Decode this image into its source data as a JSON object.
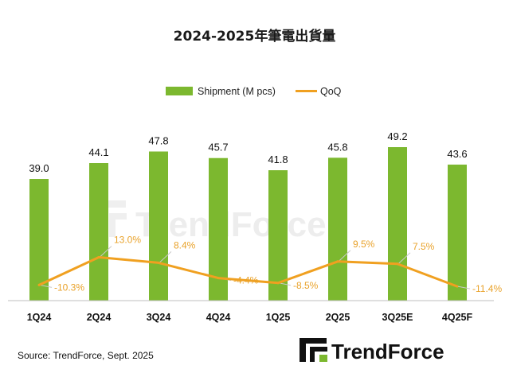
{
  "chart_data": {
    "type": "bar",
    "title": "2024-2025年筆電出貨量",
    "categories": [
      "1Q24",
      "2Q24",
      "3Q24",
      "4Q24",
      "1Q25",
      "2Q25",
      "3Q25E",
      "4Q25F"
    ],
    "series": [
      {
        "name": "Shipment (M pcs)",
        "type": "bar",
        "color": "#7cb82f",
        "values": [
          39.0,
          44.1,
          47.8,
          45.7,
          41.8,
          45.8,
          49.2,
          43.6
        ],
        "labels": [
          "39.0",
          "44.1",
          "47.8",
          "45.7",
          "41.8",
          "45.8",
          "49.2",
          "43.6"
        ]
      },
      {
        "name": "QoQ",
        "type": "line",
        "color": "#f0a020",
        "values": [
          -10.3,
          13.0,
          8.4,
          -4.4,
          -8.5,
          9.5,
          7.5,
          -11.4
        ],
        "labels": [
          "-10.3%",
          "13.0%",
          "8.4%",
          "-4.4%",
          "-8.5%",
          "9.5%",
          "7.5%",
          "-11.4%"
        ]
      }
    ],
    "legend": "top-center",
    "grid": false
  },
  "source": "Source: TrendForce, Sept. 2025",
  "logo": {
    "text": "TrendForce",
    "icon": "trendforce-logo-icon"
  },
  "watermark": {
    "text": "TrendForce"
  }
}
